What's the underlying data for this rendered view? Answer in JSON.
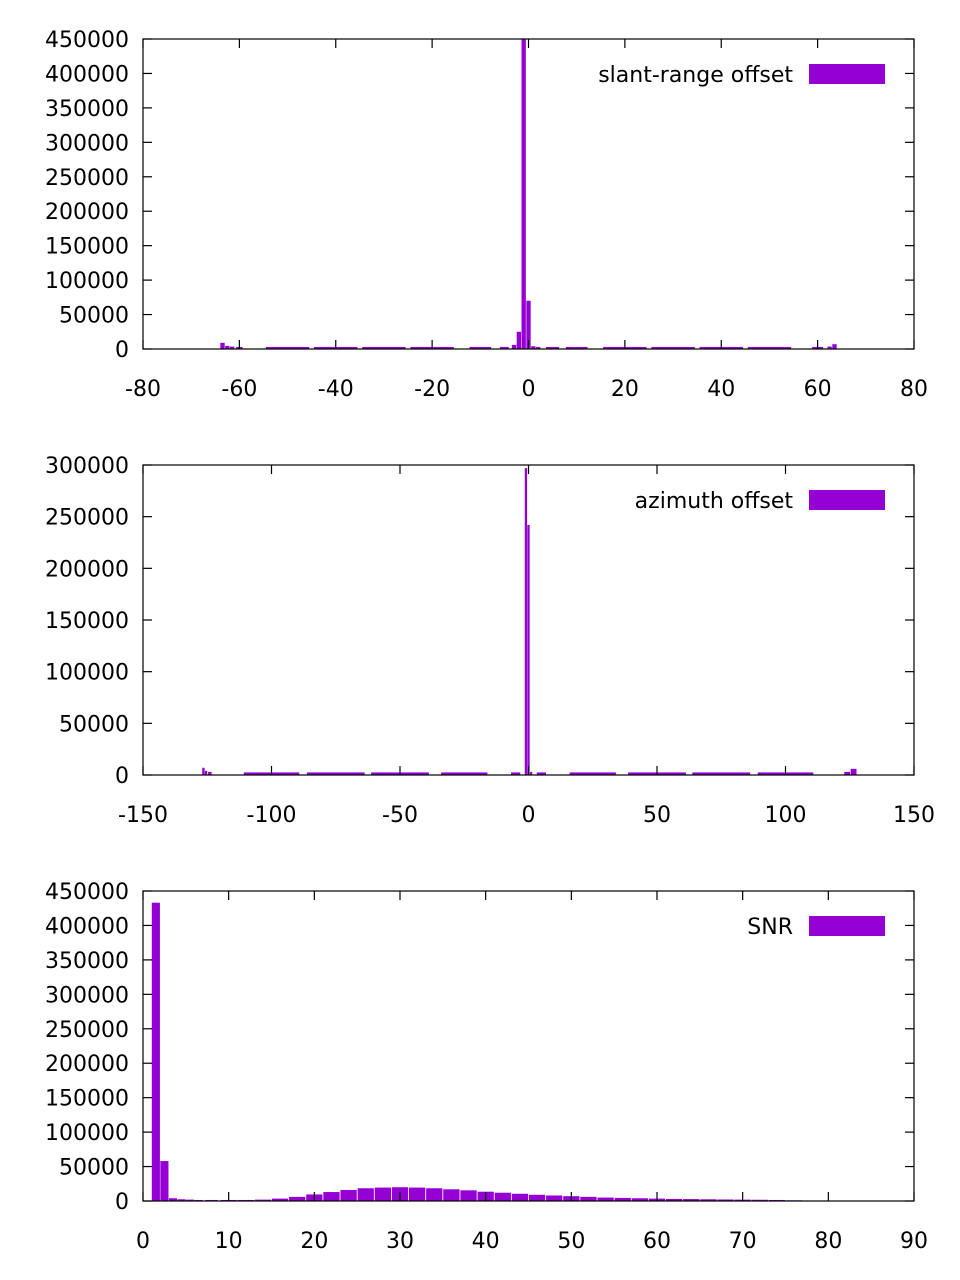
{
  "chart_data": [
    {
      "type": "bar",
      "series": [
        {
          "name": "slant-range offset",
          "color": "#9400d3"
        }
      ],
      "xlim": [
        -80,
        80
      ],
      "ylim": [
        0,
        450000
      ],
      "xticks": [
        -80,
        -60,
        -40,
        -20,
        0,
        20,
        40,
        60,
        80
      ],
      "yticks": [
        0,
        50000,
        100000,
        150000,
        200000,
        250000,
        300000,
        350000,
        400000,
        450000
      ],
      "grid": false,
      "legend": "top-right",
      "x": [
        -63.5,
        -62.5,
        -61.5,
        -60,
        -50,
        -40,
        -30,
        -20,
        -10,
        -5,
        -3,
        -2,
        -1,
        0,
        1,
        2,
        5,
        10,
        20,
        30,
        40,
        50,
        60,
        62.5,
        63.5
      ],
      "values": [
        9000,
        4500,
        3500,
        3000,
        3000,
        3000,
        3000,
        3000,
        3000,
        3000,
        6000,
        25000,
        450000,
        70000,
        4000,
        3000,
        3000,
        3000,
        3000,
        3000,
        3000,
        3000,
        3000,
        3500,
        7000
      ]
    },
    {
      "type": "bar",
      "series": [
        {
          "name": "azimuth offset",
          "color": "#9400d3"
        }
      ],
      "xlim": [
        -150,
        150
      ],
      "ylim": [
        0,
        300000
      ],
      "xticks": [
        -150,
        -100,
        -50,
        0,
        50,
        100,
        150
      ],
      "yticks": [
        0,
        50000,
        100000,
        150000,
        200000,
        250000,
        300000
      ],
      "grid": false,
      "legend": "top-right",
      "x": [
        -126.5,
        -125.5,
        -124,
        -100,
        -75,
        -50,
        -25,
        -5,
        -1,
        0,
        1,
        5,
        25,
        50,
        75,
        100,
        124,
        126.5
      ],
      "values": [
        7000,
        4000,
        3000,
        2500,
        2500,
        2500,
        2500,
        2500,
        297000,
        242000,
        3000,
        2500,
        2500,
        2500,
        2500,
        2500,
        3000,
        6000
      ]
    },
    {
      "type": "bar",
      "series": [
        {
          "name": "SNR",
          "color": "#9400d3"
        }
      ],
      "xlim": [
        0,
        90
      ],
      "ylim": [
        0,
        450000
      ],
      "xticks": [
        0,
        10,
        20,
        30,
        40,
        50,
        60,
        70,
        80,
        90
      ],
      "yticks": [
        0,
        50000,
        100000,
        150000,
        200000,
        250000,
        300000,
        350000,
        400000,
        450000
      ],
      "grid": false,
      "legend": "top-right",
      "x": [
        1.5,
        2.5,
        3.5,
        4.5,
        5.5,
        6.5,
        8,
        10,
        12,
        14,
        16,
        18,
        20,
        22,
        24,
        26,
        28,
        30,
        32,
        34,
        36,
        38,
        40,
        42,
        44,
        46,
        48,
        50,
        52,
        54,
        56,
        58,
        60,
        62,
        64,
        66,
        68,
        70,
        72,
        74,
        76
      ],
      "values": [
        433000,
        58000,
        4000,
        2500,
        2000,
        1500,
        1500,
        1500,
        1500,
        2000,
        3500,
        6000,
        9500,
        13000,
        16000,
        18500,
        19500,
        20000,
        19500,
        18500,
        17000,
        15500,
        13500,
        12000,
        10500,
        9000,
        8000,
        7000,
        6000,
        5000,
        4500,
        4000,
        3500,
        3000,
        2800,
        2500,
        2200,
        2000,
        1800,
        1500,
        1000
      ]
    }
  ]
}
